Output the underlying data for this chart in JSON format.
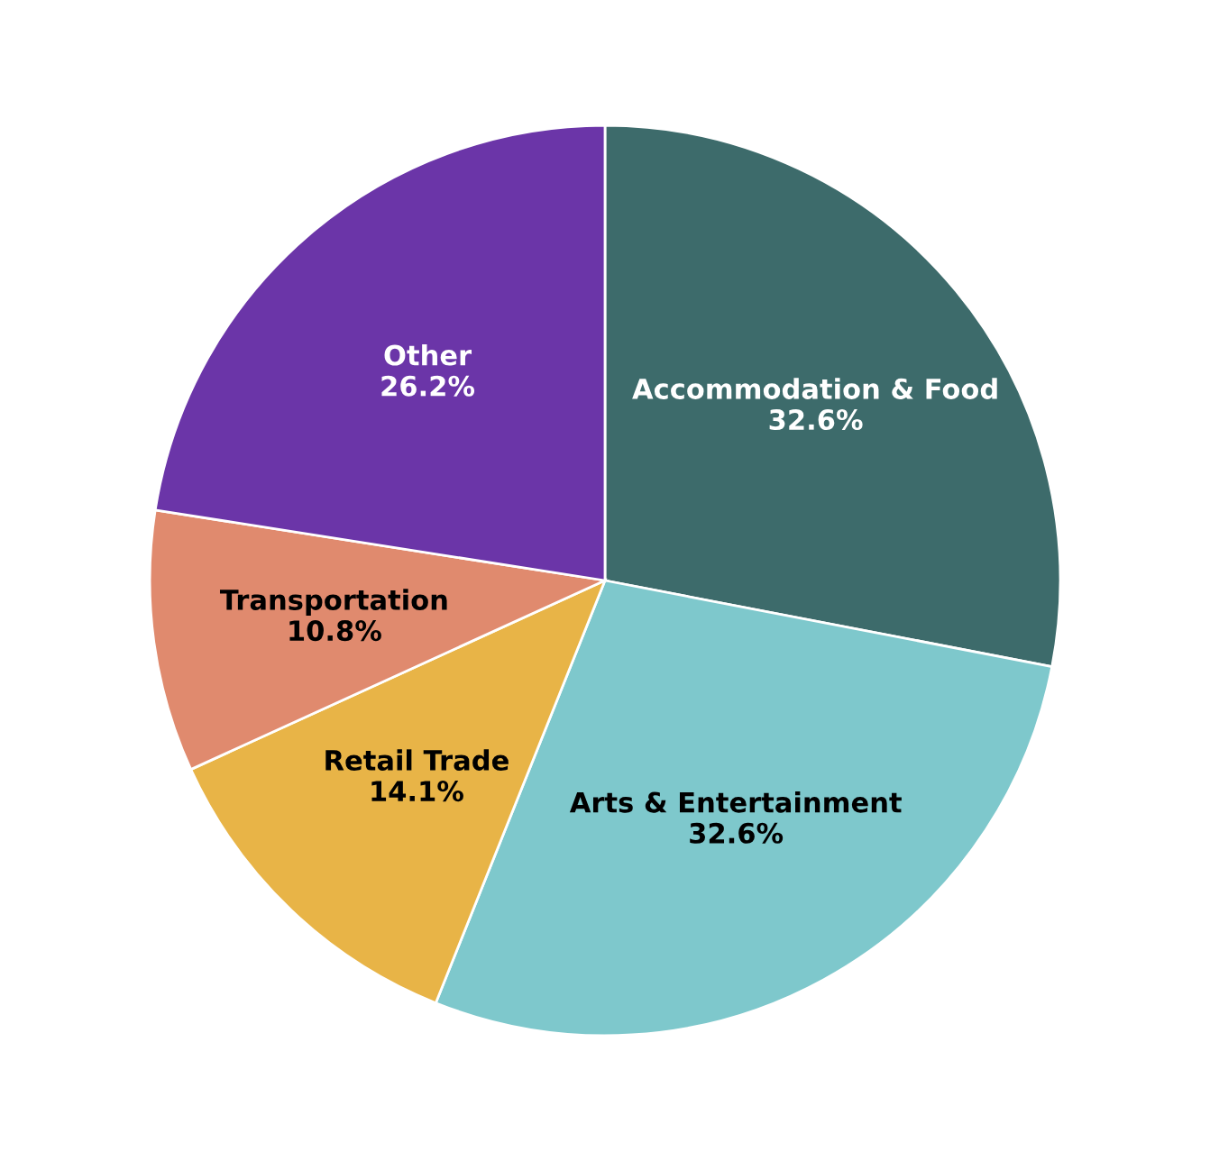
{
  "chart_data": {
    "type": "pie",
    "categories": [
      "Accommodation & Food",
      "Arts & Entertainment",
      "Retail Trade",
      "Transportation",
      "Other"
    ],
    "values": [
      32.6,
      32.6,
      14.1,
      10.8,
      26.2
    ],
    "value_labels": [
      "32.6%",
      "32.6%",
      "14.1%",
      "10.8%",
      "26.2%"
    ],
    "colors": [
      "#3d6b6b",
      "#7ec8cc",
      "#e8b447",
      "#e08a6e",
      "#6b35a8"
    ],
    "legend": false
  }
}
